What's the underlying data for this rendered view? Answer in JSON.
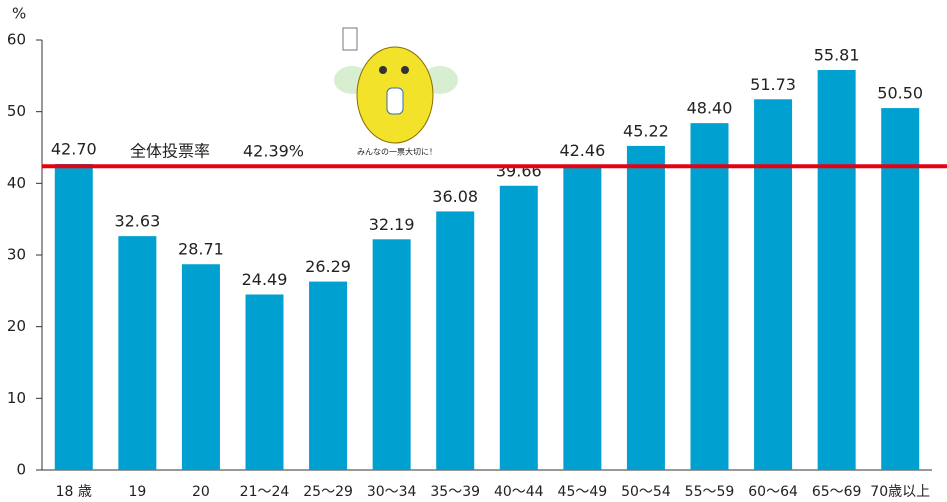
{
  "chart_data": {
    "type": "bar",
    "y_unit": "%",
    "categories": [
      "18 歳",
      "19",
      "20",
      "21～24",
      "25～29",
      "30～34",
      "35～39",
      "40～44",
      "45～49",
      "50～54",
      "55～59",
      "60～64",
      "65～69",
      "70歳以上"
    ],
    "values": [
      42.7,
      32.63,
      28.71,
      24.49,
      26.29,
      32.19,
      36.08,
      39.66,
      42.46,
      45.22,
      48.4,
      51.73,
      55.81,
      50.5
    ],
    "value_labels": [
      "42.70",
      "32.63",
      "28.71",
      "24.49",
      "26.29",
      "32.19",
      "36.08",
      "39.66",
      "42.46",
      "45.22",
      "48.40",
      "51.73",
      "55.81",
      "50.50"
    ],
    "color": "#00a0d0",
    "ylim": [
      0,
      60
    ],
    "yticks": [
      0,
      10,
      20,
      30,
      40,
      50,
      60
    ],
    "reference_line": {
      "label": "全体投票率",
      "value": 42.39,
      "value_label": "42.39%",
      "color": "#e60012"
    },
    "mascot_caption": "みんなの一票大切に！"
  }
}
